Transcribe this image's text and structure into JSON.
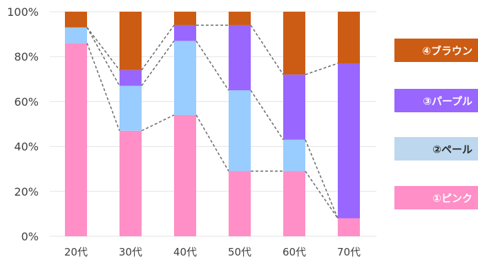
{
  "chart_data": {
    "type": "bar",
    "stacked": true,
    "categories": [
      "20代",
      "30代",
      "40代",
      "50代",
      "60代",
      "70代"
    ],
    "series": [
      {
        "name": "①ピンク",
        "color": "#ff8fc6",
        "values": [
          86,
          47,
          54,
          29,
          29,
          8
        ]
      },
      {
        "name": "②ペール",
        "color": "#99ccff",
        "values": [
          7,
          20,
          33,
          36,
          14,
          0
        ]
      },
      {
        "name": "③パープル",
        "color": "#9966ff",
        "values": [
          0,
          7,
          7,
          29,
          29,
          69
        ]
      },
      {
        "name": "④ブラウン",
        "color": "#cc5c13",
        "values": [
          7,
          26,
          6,
          6,
          28,
          23
        ]
      }
    ],
    "y_ticks": [
      "0%",
      "20%",
      "40%",
      "60%",
      "80%",
      "100%"
    ],
    "ylim": [
      0,
      100
    ],
    "grid": true,
    "legend_position": "right",
    "connector_lines": "dashed"
  }
}
